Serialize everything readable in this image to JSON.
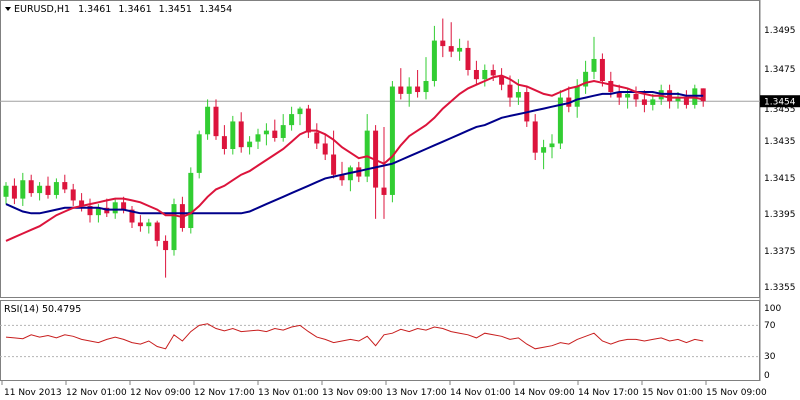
{
  "header": {
    "symbol": "EURUSD,H1",
    "open": "1.3461",
    "high": "1.3461",
    "low": "1.3451",
    "close": "1.3454"
  },
  "price_axis": {
    "ticks": [
      "1.3495",
      "1.3475",
      "1.3455",
      "1.3435",
      "1.3415",
      "1.3395",
      "1.3375",
      "1.3355"
    ],
    "current_label": "1.3454"
  },
  "rsi": {
    "label": "RSI(14) 50.4795",
    "ticks": [
      "70",
      "30",
      "0"
    ],
    "top_label": "100"
  },
  "time_axis": {
    "labels": [
      "11 Nov 2013",
      "12 Nov 01:00",
      "12 Nov 09:00",
      "12 Nov 17:00",
      "13 Nov 01:00",
      "13 Nov 09:00",
      "13 Nov 17:00",
      "14 Nov 01:00",
      "14 Nov 09:00",
      "14 Nov 17:00",
      "15 Nov 01:00",
      "15 Nov 09:00"
    ]
  },
  "colors": {
    "bull": "#32cd32",
    "bear": "#dc143c",
    "ma_fast": "#dc143c",
    "ma_slow": "#00008b",
    "rsi_line": "#c81e1e",
    "grid": "#b4b4b4"
  },
  "chart_data": {
    "type": "candlestick",
    "price_range": [
      1.3348,
      1.3508
    ],
    "rsi_range": [
      0,
      100
    ],
    "rsi_levels": [
      70,
      30
    ],
    "current_price": 1.3454,
    "candles": [
      [
        1.3402,
        1.341,
        1.3398,
        1.3408
      ],
      [
        1.3408,
        1.3412,
        1.3398,
        1.3401
      ],
      [
        1.3401,
        1.3415,
        1.3397,
        1.3411
      ],
      [
        1.3411,
        1.3414,
        1.3402,
        1.3404
      ],
      [
        1.3404,
        1.341,
        1.34,
        1.3408
      ],
      [
        1.3408,
        1.3413,
        1.3401,
        1.3403
      ],
      [
        1.3403,
        1.3412,
        1.3401,
        1.341
      ],
      [
        1.341,
        1.3414,
        1.3404,
        1.3406
      ],
      [
        1.3406,
        1.3409,
        1.3397,
        1.34
      ],
      [
        1.34,
        1.3404,
        1.3394,
        1.3397
      ],
      [
        1.3397,
        1.3401,
        1.3388,
        1.3392
      ],
      [
        1.3392,
        1.3398,
        1.3388,
        1.3396
      ],
      [
        1.3396,
        1.3401,
        1.3391,
        1.3393
      ],
      [
        1.3393,
        1.3401,
        1.339,
        1.3399
      ],
      [
        1.3399,
        1.3402,
        1.3393,
        1.3395
      ],
      [
        1.3395,
        1.3397,
        1.3385,
        1.3388
      ],
      [
        1.3388,
        1.3392,
        1.3383,
        1.3386
      ],
      [
        1.3386,
        1.339,
        1.3382,
        1.3388
      ],
      [
        1.3388,
        1.3389,
        1.3375,
        1.3378
      ],
      [
        1.3378,
        1.3381,
        1.3358,
        1.3373
      ],
      [
        1.3373,
        1.3401,
        1.337,
        1.3398
      ],
      [
        1.3398,
        1.3402,
        1.3383,
        1.3385
      ],
      [
        1.3385,
        1.3418,
        1.3382,
        1.3415
      ],
      [
        1.3415,
        1.3438,
        1.3412,
        1.3436
      ],
      [
        1.3436,
        1.3455,
        1.3433,
        1.3451
      ],
      [
        1.3451,
        1.3455,
        1.3433,
        1.3435
      ],
      [
        1.3435,
        1.3441,
        1.3425,
        1.3428
      ],
      [
        1.3428,
        1.3446,
        1.3425,
        1.3443
      ],
      [
        1.3443,
        1.3448,
        1.3426,
        1.3429
      ],
      [
        1.3429,
        1.3435,
        1.3425,
        1.3432
      ],
      [
        1.3432,
        1.3439,
        1.3428,
        1.3436
      ],
      [
        1.3436,
        1.3442,
        1.343,
        1.3438
      ],
      [
        1.3438,
        1.3444,
        1.3432,
        1.3434
      ],
      [
        1.3434,
        1.3447,
        1.3432,
        1.3441
      ],
      [
        1.3441,
        1.3451,
        1.3438,
        1.3447
      ],
      [
        1.3447,
        1.3451,
        1.3441,
        1.345
      ],
      [
        1.345,
        1.3452,
        1.3434,
        1.3437
      ],
      [
        1.3437,
        1.3442,
        1.3428,
        1.3431
      ],
      [
        1.3431,
        1.3436,
        1.3422,
        1.3425
      ],
      [
        1.3425,
        1.3438,
        1.3412,
        1.3414
      ],
      [
        1.3414,
        1.3421,
        1.3408,
        1.3411
      ],
      [
        1.3411,
        1.3419,
        1.3405,
        1.3418
      ],
      [
        1.3418,
        1.3421,
        1.341,
        1.3413
      ],
      [
        1.3413,
        1.3447,
        1.341,
        1.3438
      ],
      [
        1.3438,
        1.3441,
        1.339,
        1.3407
      ],
      [
        1.3407,
        1.344,
        1.339,
        1.3403
      ],
      [
        1.3403,
        1.3465,
        1.3399,
        1.3462
      ],
      [
        1.3462,
        1.3472,
        1.3455,
        1.3458
      ],
      [
        1.3458,
        1.3467,
        1.3451,
        1.3462
      ],
      [
        1.3462,
        1.3471,
        1.3456,
        1.3459
      ],
      [
        1.3459,
        1.3478,
        1.3455,
        1.3465
      ],
      [
        1.3465,
        1.3495,
        1.3462,
        1.3487
      ],
      [
        1.3487,
        1.3499,
        1.3478,
        1.3484
      ],
      [
        1.3484,
        1.3497,
        1.3478,
        1.3481
      ],
      [
        1.3481,
        1.3488,
        1.3476,
        1.3483
      ],
      [
        1.3483,
        1.3487,
        1.3468,
        1.3471
      ],
      [
        1.3471,
        1.3476,
        1.3463,
        1.3466
      ],
      [
        1.3466,
        1.3474,
        1.3462,
        1.3471
      ],
      [
        1.3471,
        1.3474,
        1.3465,
        1.3468
      ],
      [
        1.3468,
        1.3472,
        1.346,
        1.3463
      ],
      [
        1.3463,
        1.3468,
        1.3451,
        1.3456
      ],
      [
        1.3456,
        1.3466,
        1.3452,
        1.3459
      ],
      [
        1.3459,
        1.3462,
        1.344,
        1.3443
      ],
      [
        1.3443,
        1.3447,
        1.3422,
        1.3426
      ],
      [
        1.3426,
        1.3433,
        1.3417,
        1.3429
      ],
      [
        1.3429,
        1.3436,
        1.3423,
        1.3431
      ],
      [
        1.3431,
        1.346,
        1.3428,
        1.3456
      ],
      [
        1.3456,
        1.3462,
        1.3448,
        1.3451
      ],
      [
        1.3451,
        1.3466,
        1.3445,
        1.3462
      ],
      [
        1.3462,
        1.3476,
        1.3458,
        1.347
      ],
      [
        1.347,
        1.3489,
        1.3466,
        1.3477
      ],
      [
        1.3477,
        1.348,
        1.3462,
        1.3465
      ],
      [
        1.3465,
        1.347,
        1.3456,
        1.3459
      ],
      [
        1.3459,
        1.3463,
        1.3452,
        1.3456
      ],
      [
        1.3456,
        1.3461,
        1.345,
        1.3458
      ],
      [
        1.3458,
        1.3462,
        1.3451,
        1.3455
      ],
      [
        1.3455,
        1.346,
        1.3448,
        1.3452
      ],
      [
        1.3452,
        1.3458,
        1.3449,
        1.3455
      ],
      [
        1.3455,
        1.3463,
        1.3452,
        1.346
      ],
      [
        1.346,
        1.3463,
        1.345,
        1.3454
      ],
      [
        1.3454,
        1.3459,
        1.345,
        1.3456
      ],
      [
        1.3456,
        1.346,
        1.345,
        1.3452
      ],
      [
        1.3452,
        1.3463,
        1.345,
        1.3461
      ],
      [
        1.3461,
        1.3461,
        1.3451,
        1.3454
      ]
    ],
    "ma_fast": [
      1.3378,
      1.338,
      1.3382,
      1.3384,
      1.3386,
      1.3389,
      1.3392,
      1.3394,
      1.3396,
      1.3397,
      1.3398,
      1.3399,
      1.34,
      1.3401,
      1.3401,
      1.34,
      1.3399,
      1.3397,
      1.3395,
      1.3392,
      1.3392,
      1.3391,
      1.3393,
      1.3397,
      1.3402,
      1.3406,
      1.3408,
      1.3411,
      1.3414,
      1.3416,
      1.3419,
      1.3422,
      1.3425,
      1.3428,
      1.3432,
      1.3436,
      1.3438,
      1.3438,
      1.3436,
      1.3433,
      1.3429,
      1.3426,
      1.3423,
      1.3424,
      1.3422,
      1.342,
      1.3424,
      1.343,
      1.3435,
      1.3438,
      1.3441,
      1.3445,
      1.345,
      1.3454,
      1.3458,
      1.3461,
      1.3463,
      1.3465,
      1.3467,
      1.3468,
      1.3466,
      1.3463,
      1.3462,
      1.346,
      1.3458,
      1.3457,
      1.3459,
      1.3461,
      1.3462,
      1.3464,
      1.3465,
      1.3464,
      1.3463,
      1.3462,
      1.3461,
      1.3459,
      1.3458,
      1.3457,
      1.3457,
      1.3456,
      1.3456,
      1.3456,
      1.3456,
      1.3455
    ],
    "ma_slow": [
      1.3398,
      1.3396,
      1.3394,
      1.3393,
      1.3393,
      1.3394,
      1.3395,
      1.3396,
      1.3396,
      1.3396,
      1.3396,
      1.3396,
      1.3395,
      1.3395,
      1.3395,
      1.3394,
      1.3393,
      1.3393,
      1.3393,
      1.3393,
      1.3393,
      1.3393,
      1.3393,
      1.3393,
      1.3393,
      1.3393,
      1.3393,
      1.3393,
      1.3393,
      1.3394,
      1.3396,
      1.3398,
      1.34,
      1.3402,
      1.3404,
      1.3406,
      1.3408,
      1.341,
      1.3412,
      1.3413,
      1.3414,
      1.3415,
      1.3416,
      1.3417,
      1.3418,
      1.3419,
      1.342,
      1.3422,
      1.3424,
      1.3426,
      1.3428,
      1.343,
      1.3432,
      1.3434,
      1.3436,
      1.3438,
      1.344,
      1.3441,
      1.3443,
      1.3445,
      1.3446,
      1.3447,
      1.3448,
      1.3449,
      1.345,
      1.3451,
      1.3452,
      1.3453,
      1.3455,
      1.3456,
      1.3457,
      1.3458,
      1.3458,
      1.3459,
      1.3459,
      1.3459,
      1.3459,
      1.3459,
      1.3458,
      1.3458,
      1.3458,
      1.3457,
      1.3457,
      1.3457
    ],
    "rsi_values": [
      55,
      54,
      53,
      58,
      55,
      57,
      54,
      58,
      56,
      52,
      50,
      48,
      52,
      55,
      52,
      48,
      46,
      50,
      43,
      40,
      58,
      50,
      62,
      70,
      72,
      66,
      63,
      66,
      62,
      63,
      64,
      62,
      66,
      64,
      68,
      70,
      62,
      55,
      52,
      48,
      50,
      52,
      50,
      56,
      44,
      58,
      60,
      65,
      62,
      66,
      64,
      68,
      66,
      62,
      60,
      58,
      54,
      60,
      58,
      56,
      52,
      54,
      46,
      40,
      42,
      44,
      48,
      46,
      52,
      56,
      60,
      50,
      46,
      50,
      52,
      52,
      50,
      52,
      54,
      50,
      52,
      48,
      52,
      50
    ]
  }
}
